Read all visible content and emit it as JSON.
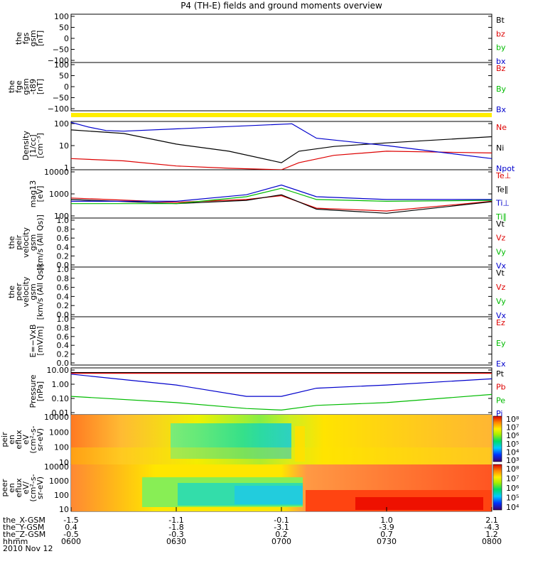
{
  "title": "P4 (TH-E) fields and ground moments overview",
  "date_label": "2010 Nov 12",
  "colors": {
    "black": "#000000",
    "red": "#dd0000",
    "green": "#00bb00",
    "blue": "#0000cc",
    "yellow_bar": "#ffee00"
  },
  "panels": [
    {
      "ylabel": [
        "the",
        "fgs",
        "gsm",
        "[nT]"
      ],
      "ticks": [
        "100",
        "50",
        "0",
        "−50",
        "−100"
      ],
      "legend": [
        {
          "text": "Bt",
          "color": "black"
        },
        {
          "text": "bz",
          "color": "red"
        },
        {
          "text": "by",
          "color": "green"
        },
        {
          "text": "bx",
          "color": "blue"
        }
      ]
    },
    {
      "ylabel": [
        "the",
        "fge",
        "gsm",
        "-t89",
        "[nT]"
      ],
      "ticks": [
        "100",
        "50",
        "0",
        "−50",
        "−100"
      ],
      "legend": [
        {
          "text": "Bz",
          "color": "red"
        },
        {
          "text": "By",
          "color": "green"
        },
        {
          "text": "Bx",
          "color": "blue"
        }
      ]
    },
    {
      "ylabel": [
        "Density",
        "[1/cc]",
        "[cm⁻³]"
      ],
      "ticks": [
        "100",
        "10",
        "1"
      ],
      "legend": [
        {
          "text": "Ne",
          "color": "red"
        },
        {
          "text": "Ni",
          "color": "black"
        },
        {
          "text": "Npot",
          "color": "blue"
        }
      ]
    },
    {
      "ylabel": [
        "mag13",
        "[eV]"
      ],
      "ticks": [
        "10000",
        "1000",
        "100"
      ],
      "legend": [
        {
          "text": "Te⊥",
          "color": "red"
        },
        {
          "text": "Te∥",
          "color": "black"
        },
        {
          "text": "Ti⊥",
          "color": "blue"
        },
        {
          "text": "Ti∥",
          "color": "green"
        }
      ]
    },
    {
      "ylabel": [
        "the",
        "peir",
        "velocity",
        "gsm",
        "[km/s (All Qs)]"
      ],
      "ticks": [
        "1.0",
        "0.8",
        "0.6",
        "0.4",
        "0.2",
        "0.0"
      ],
      "legend": [
        {
          "text": "Vt",
          "color": "black"
        },
        {
          "text": "Vz",
          "color": "red"
        },
        {
          "text": "Vy",
          "color": "green"
        },
        {
          "text": "Vx",
          "color": "blue"
        }
      ]
    },
    {
      "ylabel": [
        "the",
        "peer",
        "velocity",
        "gsm",
        "[km/s (All Qs)]"
      ],
      "ticks": [
        "1.0",
        "0.8",
        "0.6",
        "0.4",
        "0.2",
        "0.0"
      ],
      "legend": [
        {
          "text": "Vt",
          "color": "black"
        },
        {
          "text": "Vz",
          "color": "red"
        },
        {
          "text": "Vy",
          "color": "green"
        },
        {
          "text": "Vx",
          "color": "blue"
        }
      ]
    },
    {
      "ylabel": [
        "E=−VxB",
        "[mV/m]"
      ],
      "ticks": [
        "1.0",
        "0.8",
        "0.6",
        "0.4",
        "0.2",
        "0.0"
      ],
      "legend": [
        {
          "text": "Ez",
          "color": "red"
        },
        {
          "text": "Ey",
          "color": "green"
        },
        {
          "text": "Ex",
          "color": "blue"
        }
      ]
    },
    {
      "ylabel": [
        "Pressure",
        "[nPa]"
      ],
      "ticks": [
        "10.00",
        "1.00",
        "0.10",
        "0.01"
      ],
      "legend": [
        {
          "text": "Pt",
          "color": "black"
        },
        {
          "text": "Pb",
          "color": "red"
        },
        {
          "text": "Pe",
          "color": "green"
        },
        {
          "text": "Pi",
          "color": "blue"
        }
      ]
    },
    {
      "ylabel": [
        "the",
        "peir",
        "en",
        "eflux",
        "eV",
        "(cm²-s-",
        "sr-eV)"
      ],
      "ticks": [
        "10000",
        "1000",
        "100",
        "10"
      ],
      "colorbar": [
        "10⁸",
        "10⁷",
        "10⁶",
        "10⁵",
        "10⁴",
        "10³"
      ]
    },
    {
      "ylabel": [
        "the",
        "peer",
        "en",
        "eflux",
        "eV/",
        "(cm²-s-",
        "sr-eV)"
      ],
      "ticks": [
        "10000",
        "1000",
        "100",
        "10"
      ],
      "colorbar": [
        "10⁸",
        "10⁷",
        "10⁶",
        "10⁵",
        "10⁴"
      ]
    }
  ],
  "xaxis": {
    "rows": [
      {
        "label": "the_X-GSM",
        "values": [
          "-1.5",
          "-1.1",
          "-0.1",
          "1.0",
          "2.1"
        ]
      },
      {
        "label": "the_Y-GSM",
        "values": [
          "0.4",
          "-1.8",
          "-3.1",
          "-3.9",
          "-4.3"
        ]
      },
      {
        "label": "the_Z-GSM",
        "values": [
          "-0.5",
          "-0.3",
          "0.2",
          "0.7",
          "1.2"
        ]
      },
      {
        "label": "hhmm",
        "values": [
          "0600",
          "0630",
          "0700",
          "0730",
          "0800"
        ]
      }
    ],
    "extra_ticks": [
      "-0.5",
      "-0.1 "
    ]
  },
  "chart_data": {
    "type": "line",
    "title": "P4 (TH-E) fields and ground moments overview",
    "x_time": [
      "0600",
      "0630",
      "0700",
      "0730",
      "0800"
    ],
    "density": {
      "ylim": [
        0.5,
        200
      ],
      "scale": "log",
      "series": [
        {
          "name": "Ne",
          "color": "red",
          "x": [
            "0600",
            "0615",
            "0630",
            "0645",
            "0700",
            "0705",
            "0715",
            "0730",
            "0800"
          ],
          "values": [
            2.0,
            1.5,
            0.8,
            0.6,
            0.5,
            1.2,
            3.0,
            5.0,
            4.0
          ]
        },
        {
          "name": "Ni",
          "color": "black",
          "x": [
            "0600",
            "0615",
            "0630",
            "0645",
            "0700",
            "0705",
            "0715",
            "0730",
            "0800"
          ],
          "values": [
            70,
            45,
            12,
            5,
            1.2,
            5,
            9,
            14,
            30
          ]
        },
        {
          "name": "Npot",
          "color": "blue",
          "x": [
            "0600",
            "0605",
            "0610",
            "0615",
            "0703",
            "0710",
            "0730",
            "0800"
          ],
          "values": [
            180,
            100,
            65,
            60,
            150,
            25,
            10,
            2
          ]
        }
      ]
    },
    "temperature": {
      "ylim": [
        50,
        20000
      ],
      "scale": "log",
      "series": [
        {
          "name": "Te⊥",
          "color": "red",
          "x": [
            "0600",
            "0630",
            "0650",
            "0700",
            "0710",
            "0730",
            "0800"
          ],
          "values": [
            600,
            350,
            500,
            800,
            170,
            120,
            400
          ]
        },
        {
          "name": "Te∥",
          "color": "black",
          "x": [
            "0600",
            "0630",
            "0650",
            "0700",
            "0710",
            "0730",
            "0800"
          ],
          "values": [
            500,
            300,
            450,
            900,
            150,
            90,
            380
          ]
        },
        {
          "name": "Ti⊥",
          "color": "blue",
          "x": [
            "0600",
            "0630",
            "0650",
            "0700",
            "0710",
            "0730",
            "0800"
          ],
          "values": [
            400,
            400,
            900,
            3000,
            700,
            500,
            500
          ]
        },
        {
          "name": "Ti∥",
          "color": "green",
          "x": [
            "0600",
            "0630",
            "0650",
            "0700",
            "0710",
            "0730",
            "0800"
          ],
          "values": [
            300,
            300,
            700,
            2000,
            500,
            400,
            450
          ]
        }
      ]
    },
    "pressure": {
      "ylim": [
        0.01,
        10
      ],
      "scale": "log",
      "series": [
        {
          "name": "Pt",
          "color": "black",
          "x": [
            "0600",
            "0800"
          ],
          "values": [
            5.0,
            5.0
          ]
        },
        {
          "name": "Pb",
          "color": "red",
          "x": [
            "0600",
            "0630",
            "0700",
            "0730",
            "0800"
          ],
          "values": [
            4.5,
            4.5,
            4.5,
            4.5,
            4.5
          ]
        },
        {
          "name": "Pe",
          "color": "green",
          "x": [
            "0600",
            "0630",
            "0650",
            "0700",
            "0710",
            "0730",
            "0800"
          ],
          "values": [
            0.15,
            0.06,
            0.025,
            0.02,
            0.04,
            0.06,
            0.2
          ]
        },
        {
          "name": "Pi",
          "color": "blue",
          "x": [
            "0600",
            "0630",
            "0650",
            "0700",
            "0710",
            "0730",
            "0800"
          ],
          "values": [
            4.0,
            0.8,
            0.15,
            0.15,
            0.5,
            0.8,
            2.0
          ]
        }
      ]
    }
  }
}
